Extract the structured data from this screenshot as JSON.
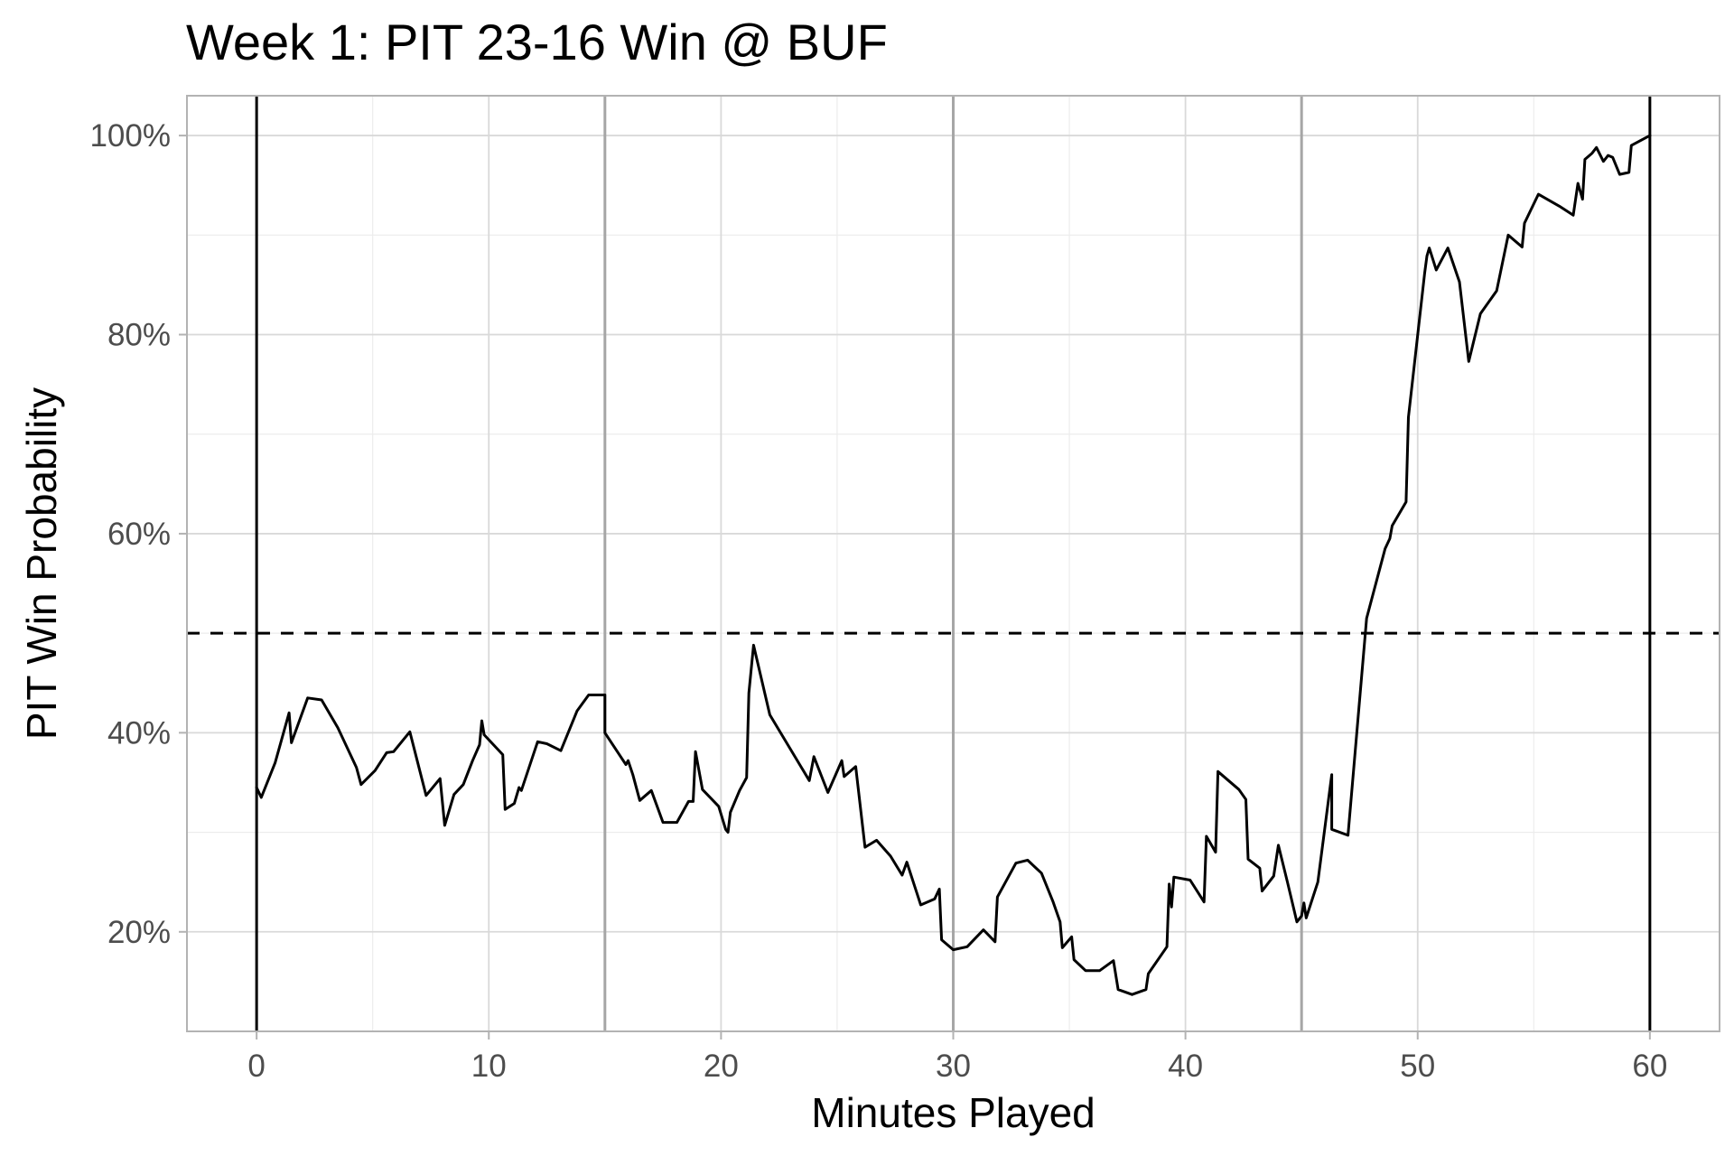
{
  "chart_data": {
    "type": "line",
    "title": "Week 1: PIT 23-16 Win @ BUF",
    "xlabel": "Minutes Played",
    "ylabel": "PIT Win Probability",
    "xlim": [
      -3,
      63
    ],
    "ylim": [
      10,
      104
    ],
    "x_ticks": [
      0,
      10,
      20,
      30,
      40,
      50,
      60
    ],
    "x_tick_labels": [
      "0",
      "10",
      "20",
      "30",
      "40",
      "50",
      "60"
    ],
    "y_ticks": [
      20,
      40,
      60,
      80,
      100
    ],
    "y_tick_labels": [
      "20%",
      "40%",
      "60%",
      "80%",
      "100%"
    ],
    "grid": true,
    "reference_lines": {
      "horizontal_dashed": 50,
      "game_boundaries": [
        0,
        60
      ],
      "quarter_breaks": [
        15,
        30,
        45
      ]
    },
    "colors": {
      "line": "#000000",
      "quarter_line": "#a6a6a6",
      "grid_major": "#d9d9d9",
      "grid_minor": "#ececec",
      "panel_border": "#b3b3b3",
      "tick_text": "#4d4d4d"
    },
    "series": [
      {
        "points": [
          [
            0,
            34.5
          ],
          [
            0.2,
            33.5
          ],
          [
            0.8,
            37
          ],
          [
            1.4,
            42
          ],
          [
            1.5,
            39
          ],
          [
            2.2,
            43.5
          ],
          [
            2.8,
            43.3
          ],
          [
            3.5,
            40.5
          ],
          [
            4.3,
            36.5
          ],
          [
            4.5,
            34.8
          ],
          [
            5.1,
            36.2
          ],
          [
            5.6,
            38
          ],
          [
            5.9,
            38.1
          ],
          [
            6.6,
            40.1
          ],
          [
            7.3,
            33.7
          ],
          [
            7.9,
            35.4
          ],
          [
            8.1,
            30.7
          ],
          [
            8.5,
            33.8
          ],
          [
            8.9,
            34.8
          ],
          [
            9.3,
            37.2
          ],
          [
            9.6,
            38.8
          ],
          [
            9.7,
            41.2
          ],
          [
            9.8,
            39.8
          ],
          [
            10.6,
            37.8
          ],
          [
            10.7,
            32.3
          ],
          [
            11.1,
            32.9
          ],
          [
            11.3,
            34.5
          ],
          [
            11.4,
            34.2
          ],
          [
            12.1,
            39.1
          ],
          [
            12.5,
            38.9
          ],
          [
            13.1,
            38.2
          ],
          [
            13.8,
            42.2
          ],
          [
            14.3,
            43.8
          ],
          [
            15,
            43.8
          ],
          [
            15,
            40
          ],
          [
            15.9,
            36.8
          ],
          [
            16,
            37.2
          ],
          [
            16.2,
            35.8
          ],
          [
            16.5,
            33.2
          ],
          [
            17,
            34.2
          ],
          [
            17.5,
            31
          ],
          [
            18.1,
            31
          ],
          [
            18.6,
            33.1
          ],
          [
            18.8,
            33.1
          ],
          [
            18.9,
            38.1
          ],
          [
            19.2,
            34.3
          ],
          [
            19.9,
            32.6
          ],
          [
            20.2,
            30.3
          ],
          [
            20.3,
            30
          ],
          [
            20.4,
            32
          ],
          [
            20.8,
            34.2
          ],
          [
            21.1,
            35.5
          ],
          [
            21.2,
            44
          ],
          [
            21.4,
            48.8
          ],
          [
            22.1,
            41.8
          ],
          [
            23.8,
            35.2
          ],
          [
            24,
            37.6
          ],
          [
            24.6,
            34
          ],
          [
            24.9,
            35.6
          ],
          [
            25.2,
            37.2
          ],
          [
            25.3,
            35.6
          ],
          [
            25.8,
            36.6
          ],
          [
            26.2,
            28.5
          ],
          [
            26.7,
            29.2
          ],
          [
            27.3,
            27.6
          ],
          [
            27.8,
            25.7
          ],
          [
            28,
            27
          ],
          [
            28.6,
            22.7
          ],
          [
            29.2,
            23.3
          ],
          [
            29.4,
            24.3
          ],
          [
            29.5,
            19.2
          ],
          [
            30,
            18.2
          ],
          [
            30.6,
            18.5
          ],
          [
            31.3,
            20.2
          ],
          [
            31.8,
            19
          ],
          [
            31.9,
            23.5
          ],
          [
            32.7,
            26.9
          ],
          [
            33.2,
            27.2
          ],
          [
            33.8,
            25.9
          ],
          [
            34.3,
            23
          ],
          [
            34.6,
            21
          ],
          [
            34.7,
            18.4
          ],
          [
            35.1,
            19.5
          ],
          [
            35.2,
            17.2
          ],
          [
            35.7,
            16.1
          ],
          [
            36.3,
            16.1
          ],
          [
            36.9,
            17.1
          ],
          [
            37.1,
            14.2
          ],
          [
            37.7,
            13.7
          ],
          [
            38.3,
            14.2
          ],
          [
            38.4,
            15.8
          ],
          [
            39.2,
            18.5
          ],
          [
            39.3,
            24.8
          ],
          [
            39.4,
            22.5
          ],
          [
            39.5,
            25.5
          ],
          [
            40.2,
            25.2
          ],
          [
            40.8,
            23
          ],
          [
            40.9,
            29.6
          ],
          [
            41.3,
            28
          ],
          [
            41.4,
            36.1
          ],
          [
            42.3,
            34.3
          ],
          [
            42.6,
            33.3
          ],
          [
            42.7,
            27.3
          ],
          [
            43.2,
            26.4
          ],
          [
            43.3,
            24.1
          ],
          [
            43.8,
            25.6
          ],
          [
            44,
            28.7
          ],
          [
            44.4,
            24.9
          ],
          [
            44.8,
            21
          ],
          [
            45,
            21.6
          ],
          [
            45.1,
            22.9
          ],
          [
            45.2,
            21.4
          ],
          [
            45.7,
            25
          ],
          [
            46.3,
            35.8
          ],
          [
            46.3,
            30.3
          ],
          [
            47,
            29.7
          ],
          [
            47.8,
            51.5
          ],
          [
            48.6,
            58.5
          ],
          [
            48.8,
            59.5
          ],
          [
            48.9,
            60.8
          ],
          [
            49.5,
            63.2
          ],
          [
            49.6,
            71.7
          ],
          [
            50.3,
            86.2
          ],
          [
            50.4,
            87.9
          ],
          [
            50.5,
            88.7
          ],
          [
            50.8,
            86.5
          ],
          [
            51.3,
            88.7
          ],
          [
            51.8,
            85.3
          ],
          [
            52.2,
            77.3
          ],
          [
            52.7,
            82.1
          ],
          [
            53.4,
            84.4
          ],
          [
            53.9,
            90
          ],
          [
            54.5,
            88.8
          ],
          [
            54.6,
            91.2
          ],
          [
            55.2,
            94.1
          ],
          [
            56.1,
            92.9
          ],
          [
            56.7,
            92
          ],
          [
            56.9,
            95.2
          ],
          [
            57.1,
            93.6
          ],
          [
            57.2,
            97.6
          ],
          [
            57.5,
            98.2
          ],
          [
            57.7,
            98.8
          ],
          [
            58,
            97.4
          ],
          [
            58.2,
            98
          ],
          [
            58.4,
            97.8
          ],
          [
            58.7,
            96.1
          ],
          [
            59.1,
            96.3
          ],
          [
            59.2,
            99
          ],
          [
            60,
            100
          ]
        ]
      }
    ]
  }
}
